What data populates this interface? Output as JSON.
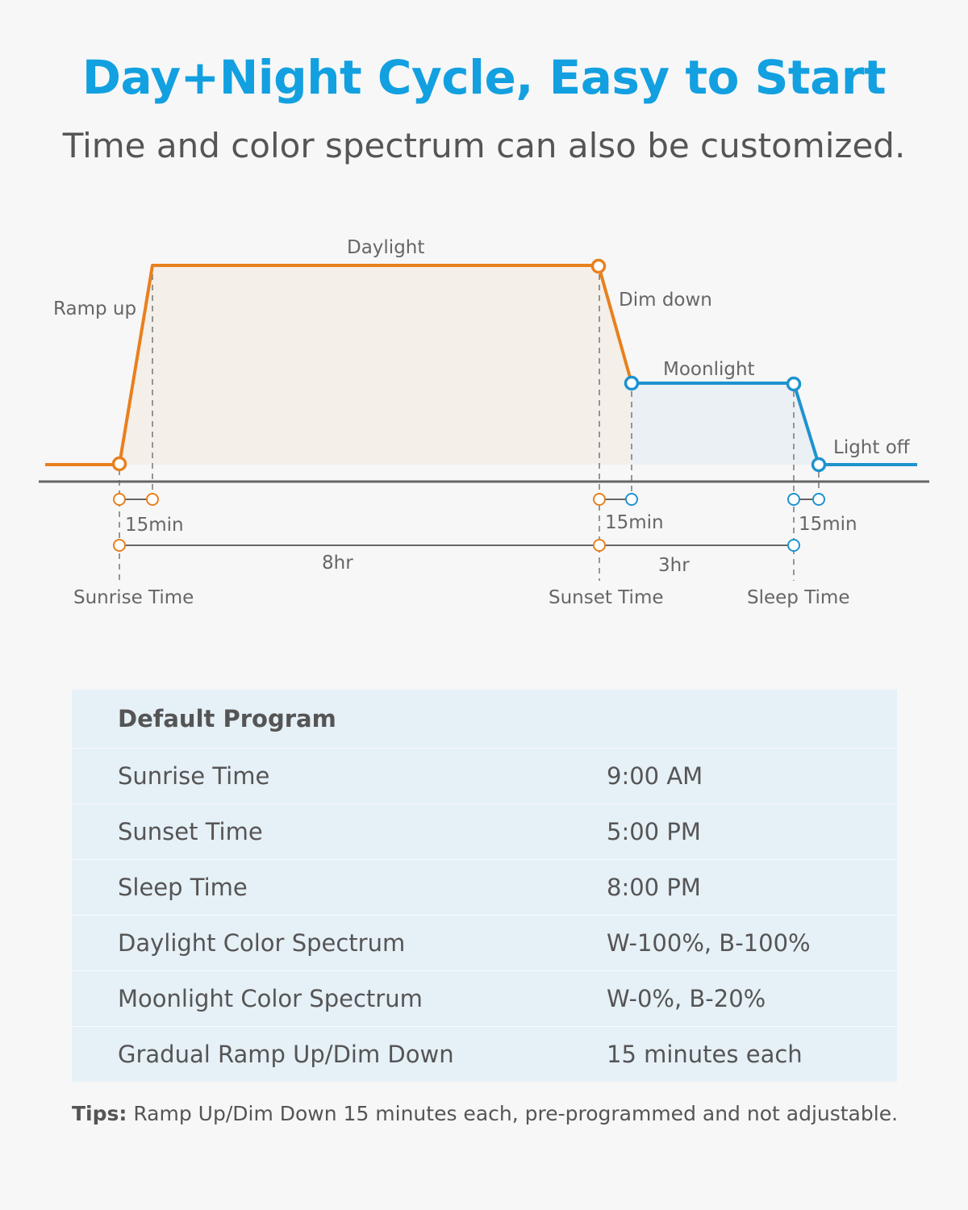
{
  "header": {
    "title": "Day+Night Cycle, Easy to Start",
    "subtitle": "Time and color spectrum can also be customized."
  },
  "diagram": {
    "colors": {
      "daylight": "#e8801e",
      "moonlight": "#1e93cf",
      "daylight_fill": "#f4efe9",
      "moonlight_fill": "#ebf0f4",
      "axis": "#666666"
    },
    "phase_labels": {
      "ramp_up": "Ramp up",
      "daylight": "Daylight",
      "dim_down": "Dim down",
      "moonlight": "Moonlight",
      "light_off": "Light off"
    },
    "durations": {
      "ramp_up": "15min",
      "dim_down": "15min",
      "moon_off": "15min",
      "day": "8hr",
      "moon": "3hr"
    },
    "time_labels": {
      "sunrise": "Sunrise Time",
      "sunset": "Sunset Time",
      "sleep": "Sleep Time"
    }
  },
  "table": {
    "heading": "Default Program",
    "rows": [
      {
        "label": "Sunrise Time",
        "value": "9:00 AM"
      },
      {
        "label": "Sunset Time",
        "value": "5:00 PM"
      },
      {
        "label": "Sleep Time",
        "value": "8:00 PM"
      },
      {
        "label": "Daylight Color Spectrum",
        "value": "W-100%, B-100%"
      },
      {
        "label": "Moonlight Color Spectrum",
        "value": "W-0%, B-20%"
      },
      {
        "label": "Gradual Ramp Up/Dim Down",
        "value": "15 minutes each"
      }
    ]
  },
  "tips": {
    "label": "Tips:",
    "text": " Ramp Up/Dim Down 15 minutes each, pre-programmed and not adjustable."
  }
}
